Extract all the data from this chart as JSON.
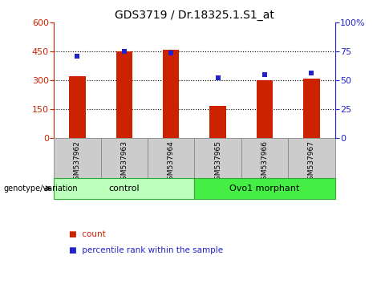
{
  "title": "GDS3719 / Dr.18325.1.S1_at",
  "samples": [
    "GSM537962",
    "GSM537963",
    "GSM537964",
    "GSM537965",
    "GSM537966",
    "GSM537967"
  ],
  "bar_values": [
    320,
    452,
    460,
    168,
    300,
    310
  ],
  "percentile_values": [
    71,
    75,
    74,
    52,
    55,
    56
  ],
  "left_ylim": [
    0,
    600
  ],
  "right_ylim": [
    0,
    100
  ],
  "left_yticks": [
    0,
    150,
    300,
    450,
    600
  ],
  "right_yticks": [
    0,
    25,
    50,
    75,
    100
  ],
  "right_yticklabels": [
    "0",
    "25",
    "50",
    "75",
    "100%"
  ],
  "bar_color": "#cc2200",
  "dot_color": "#2222cc",
  "background_color": "#ffffff",
  "gridline_color": "#000000",
  "gridline_vals": [
    150,
    300,
    450
  ],
  "groups": [
    {
      "label": "control",
      "indices": [
        0,
        1,
        2
      ],
      "facecolor": "#bbffbb",
      "edgecolor": "#33aa33"
    },
    {
      "label": "Ovo1 morphant",
      "indices": [
        3,
        4,
        5
      ],
      "facecolor": "#44ee44",
      "edgecolor": "#33aa33"
    }
  ],
  "genotype_label": "genotype/variation",
  "legend_items": [
    {
      "label": "count",
      "color": "#cc2200"
    },
    {
      "label": "percentile rank within the sample",
      "color": "#2222cc"
    }
  ]
}
